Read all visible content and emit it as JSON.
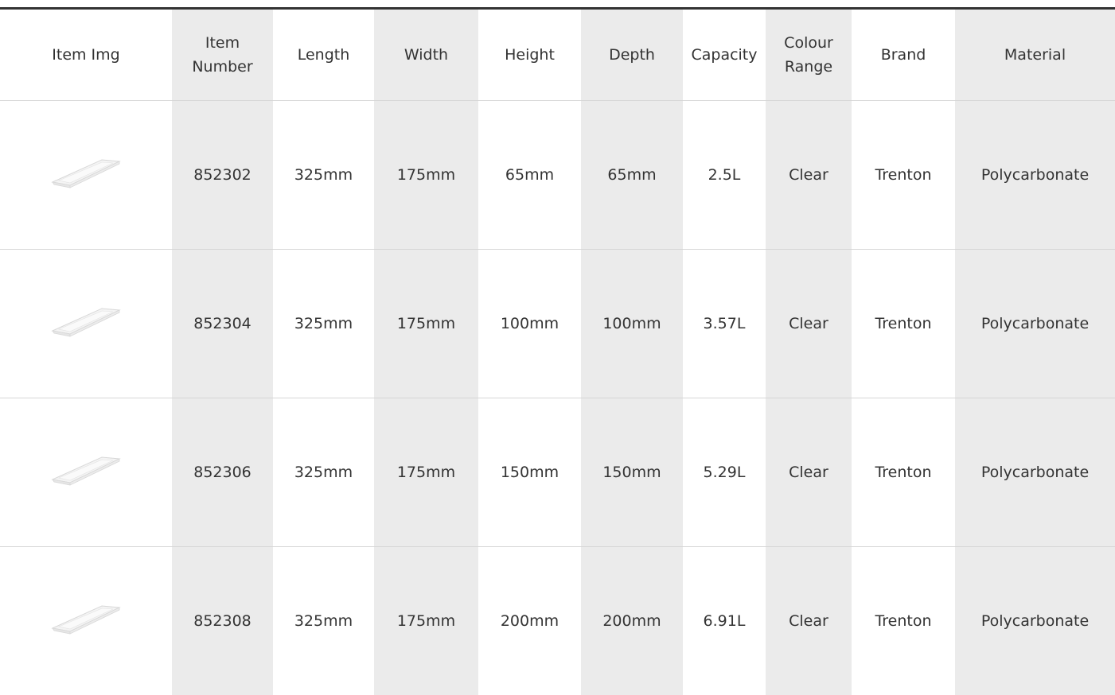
{
  "table": {
    "headers": [
      "Item Img",
      "Item Number",
      "Length",
      "Width",
      "Height",
      "Depth",
      "Capacity",
      "Colour Range",
      "Brand",
      "Material"
    ],
    "rows": [
      [
        "852302",
        "325mm",
        "175mm",
        "65mm",
        "65mm",
        "2.5L",
        "Clear",
        "Trenton",
        "Polycarbonate"
      ],
      [
        "852304",
        "325mm",
        "175mm",
        "100mm",
        "100mm",
        "3.57L",
        "Clear",
        "Trenton",
        "Polycarbonate"
      ],
      [
        "852306",
        "325mm",
        "175mm",
        "150mm",
        "150mm",
        "5.29L",
        "Clear",
        "Trenton",
        "Polycarbonate"
      ],
      [
        "852308",
        "325mm",
        "175mm",
        "200mm",
        "200mm",
        "6.91L",
        "Clear",
        "Trenton",
        "Polycarbonate"
      ]
    ]
  }
}
